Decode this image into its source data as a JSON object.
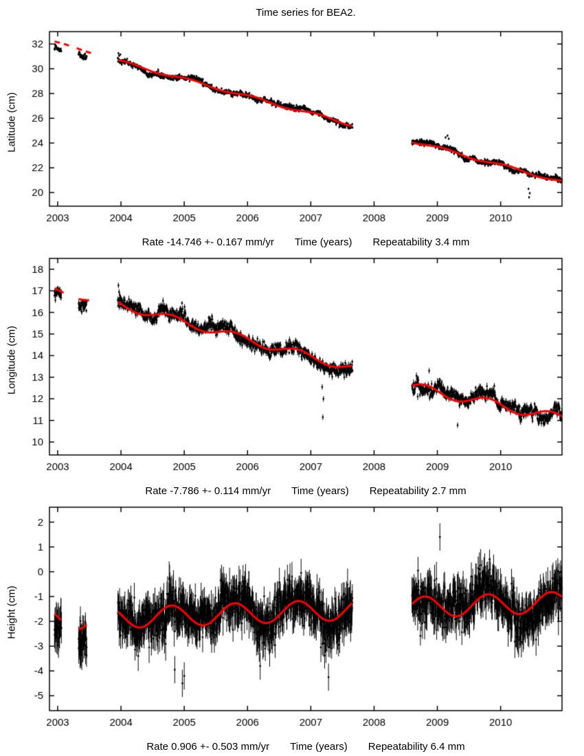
{
  "title": "Time series for BEA2.",
  "colors": {
    "marker": "#000000",
    "fit_line": "#ff0000",
    "axis": "#000000",
    "background": "#ffffff"
  },
  "chart_data": [
    {
      "type": "scatter",
      "name": "latitude",
      "ylabel": "Latitude (cm)",
      "xlabel": "Time (years)",
      "rate_label": "Rate -14.746 +- 0.167 mm/yr",
      "repeatability_label": "Repeatability 3.4 mm",
      "rate_mm_per_yr": -14.746,
      "rate_sigma_mm_per_yr": 0.167,
      "repeatability_mm": 3.4,
      "xlim": [
        2002.87,
        2010.97
      ],
      "ylim": [
        18.9,
        33.0
      ],
      "x_ticks": [
        2003,
        2004,
        2005,
        2006,
        2007,
        2008,
        2009,
        2010
      ],
      "y_ticks": [
        20,
        22,
        24,
        26,
        28,
        30,
        32
      ],
      "seed": 101,
      "dt": 0.004,
      "noise_sigma": 0.1,
      "rw_sigma": 0.03,
      "error_bar": 0.1,
      "segments": [
        {
          "t0": 2002.95,
          "t1": 2003.06,
          "v0": 32.17,
          "slope": -1.47,
          "amp": 0.05,
          "phase": 0.1,
          "data_offset": -0.5,
          "line_range": [
            2002.95,
            2003.22
          ],
          "dashed": true
        },
        {
          "t0": 2003.33,
          "t1": 2003.46,
          "v0": 31.6,
          "slope": -1.47,
          "amp": 0.05,
          "phase": 0.1,
          "data_offset": -0.35,
          "line_range": [
            2003.3,
            2003.58
          ],
          "dashed": true
        },
        {
          "t0": 2003.95,
          "t1": 2007.66,
          "v0": 30.62,
          "slope": -1.39,
          "amp": 0.12,
          "phase": 0.1,
          "data_offset": 0
        },
        {
          "t0": 2008.6,
          "t1": 2010.97,
          "v0": 24.16,
          "slope": -1.39,
          "amp": 0.12,
          "phase": 0.1,
          "data_offset": 0
        }
      ],
      "outliers": [
        [
          2003.96,
          31.25
        ],
        [
          2003.97,
          31.05
        ],
        [
          2003.99,
          31.15
        ],
        [
          2009.13,
          24.45
        ],
        [
          2009.16,
          24.6
        ],
        [
          2009.18,
          24.35
        ],
        [
          2010.02,
          22.35
        ],
        [
          2010.44,
          20.3
        ],
        [
          2010.45,
          19.62
        ],
        [
          2010.46,
          19.95
        ]
      ]
    },
    {
      "type": "scatter",
      "name": "longitude",
      "ylabel": "Longitude (cm)",
      "xlabel": "Time (years)",
      "rate_label": "Rate -7.786 +- 0.114 mm/yr",
      "repeatability_label": "Repeatability 2.7 mm",
      "rate_mm_per_yr": -7.786,
      "rate_sigma_mm_per_yr": 0.114,
      "repeatability_mm": 2.7,
      "xlim": [
        2002.87,
        2010.97
      ],
      "ylim": [
        9.4,
        18.5
      ],
      "x_ticks": [
        2003,
        2004,
        2005,
        2006,
        2007,
        2008,
        2009,
        2010
      ],
      "y_ticks": [
        10,
        11,
        12,
        13,
        14,
        15,
        16,
        17,
        18
      ],
      "seed": 202,
      "dt": 0.004,
      "noise_sigma": 0.13,
      "rw_sigma": 0.04,
      "error_bar": 0.13,
      "segments": [
        {
          "t0": 2002.95,
          "t1": 2003.06,
          "v0": 17.05,
          "slope": -0.78,
          "amp": 0.1,
          "phase": 0.8,
          "data_offset": -0.3,
          "line_range": [
            2002.95,
            2003.1
          ]
        },
        {
          "t0": 2003.33,
          "t1": 2003.46,
          "v0": 16.72,
          "slope": -0.78,
          "amp": 0.1,
          "phase": 0.8,
          "data_offset": -0.35,
          "line_range": [
            2003.33,
            2003.5
          ]
        },
        {
          "t0": 2003.95,
          "t1": 2007.66,
          "v0": 16.38,
          "slope": -0.8,
          "amp": 0.18,
          "phase": 0.8,
          "data_offset": 0
        },
        {
          "t0": 2008.6,
          "t1": 2010.97,
          "v0": 12.55,
          "slope": -0.62,
          "amp": 0.22,
          "phase": 0.8,
          "data_offset": 0
        }
      ],
      "outliers": [
        [
          2003.96,
          17.25
        ],
        [
          2003.97,
          16.95
        ],
        [
          2003.98,
          16.6
        ],
        [
          2007.18,
          12.55
        ],
        [
          2007.19,
          11.15
        ],
        [
          2007.2,
          12.0
        ],
        [
          2008.87,
          13.3
        ],
        [
          2009.32,
          10.78
        ],
        [
          2009.88,
          12.45
        ],
        [
          2009.9,
          12.6
        ]
      ]
    },
    {
      "type": "scatter",
      "name": "height",
      "ylabel": "Height (cm)",
      "xlabel": "Time (years)",
      "rate_label": "Rate 0.906 +- 0.503 mm/yr",
      "repeatability_label": "Repeatability 6.4 mm",
      "rate_mm_per_yr": 0.906,
      "rate_sigma_mm_per_yr": 0.503,
      "repeatability_mm": 6.4,
      "xlim": [
        2002.87,
        2010.97
      ],
      "ylim": [
        -5.6,
        2.6
      ],
      "x_ticks": [
        2003,
        2004,
        2005,
        2006,
        2007,
        2008,
        2009,
        2010
      ],
      "y_ticks": [
        -5,
        -4,
        -3,
        -2,
        -1,
        0,
        1,
        2
      ],
      "seed": 303,
      "dt": 0.004,
      "noise_sigma": 0.4,
      "rw_sigma": 0.06,
      "error_bar": 0.55,
      "segments": [
        {
          "t0": 2002.95,
          "t1": 2003.06,
          "v0": -1.95,
          "slope": 0.09,
          "amp": 0.42,
          "phase": 0.8,
          "data_offset": -0.35
        },
        {
          "t0": 2003.33,
          "t1": 2003.46,
          "v0": -1.91,
          "slope": 0.09,
          "amp": 0.42,
          "phase": 0.8,
          "data_offset": -0.35
        },
        {
          "t0": 2003.95,
          "t1": 2007.66,
          "v0": -1.86,
          "slope": 0.09,
          "amp": 0.42,
          "phase": 0.8,
          "data_offset": 0
        },
        {
          "t0": 2008.6,
          "t1": 2010.97,
          "v0": -1.44,
          "slope": 0.09,
          "amp": 0.42,
          "phase": 0.8,
          "data_offset": 0
        }
      ],
      "outliers": [
        [
          2004.85,
          -3.95
        ],
        [
          2004.97,
          -4.5
        ],
        [
          2005.0,
          -4.2
        ],
        [
          2006.2,
          -3.8
        ],
        [
          2007.28,
          -4.25
        ],
        [
          2009.04,
          1.4
        ]
      ]
    }
  ]
}
